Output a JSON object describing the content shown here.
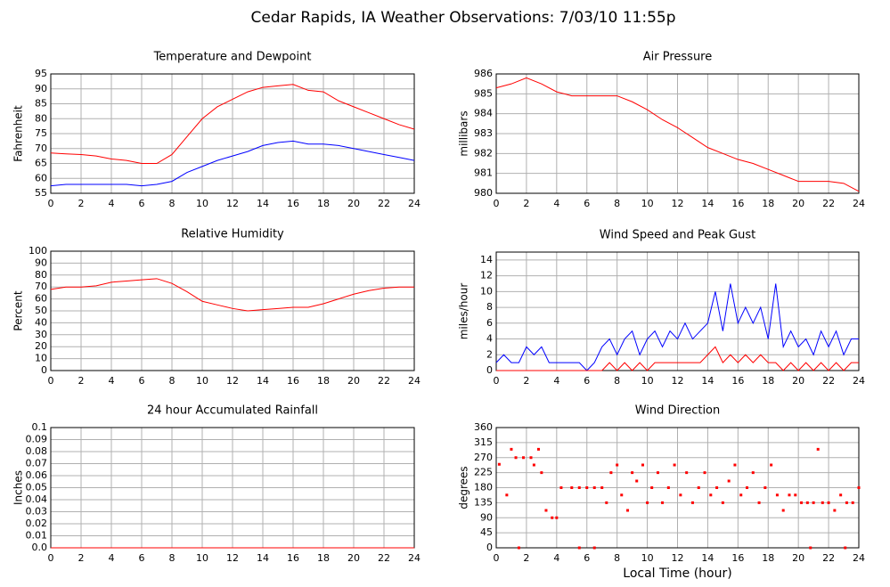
{
  "title": "Cedar Rapids, IA Weather Observations: 7/03/10 11:55p",
  "chart_data": [
    {
      "type": "line",
      "title": "Temperature and Dewpoint",
      "ylabel": "Fahrenheit",
      "x": [
        0,
        1,
        2,
        3,
        4,
        5,
        6,
        7,
        8,
        9,
        10,
        11,
        12,
        13,
        14,
        15,
        16,
        17,
        18,
        19,
        20,
        21,
        22,
        23,
        24
      ],
      "series": [
        {
          "color": "#ff0000",
          "values": [
            68.5,
            68.2,
            68,
            67.5,
            66.5,
            66,
            65,
            65,
            68,
            74,
            80,
            84,
            86.5,
            89,
            90.5,
            91,
            91.5,
            89.5,
            89,
            86,
            84,
            82,
            80,
            78,
            76.5
          ]
        },
        {
          "color": "#0000ff",
          "values": [
            57.5,
            58,
            58,
            58,
            58,
            58,
            57.5,
            58,
            59,
            62,
            64,
            66,
            67.5,
            69,
            71,
            72,
            72.5,
            71.5,
            71.5,
            71,
            70,
            69,
            68,
            67,
            66
          ]
        }
      ],
      "xlim": [
        0,
        24
      ],
      "xticks": [
        0,
        2,
        4,
        6,
        8,
        10,
        12,
        14,
        16,
        18,
        20,
        22,
        24
      ],
      "ylim": [
        55,
        95
      ],
      "yticks": [
        55,
        60,
        65,
        70,
        75,
        80,
        85,
        90,
        95
      ],
      "grid": true
    },
    {
      "type": "line",
      "title": "Air Pressure",
      "ylabel": "millibars",
      "x": [
        0,
        1,
        2,
        3,
        4,
        5,
        6,
        7,
        8,
        9,
        10,
        11,
        12,
        13,
        14,
        15,
        16,
        17,
        18,
        19,
        20,
        21,
        22,
        23,
        24
      ],
      "series": [
        {
          "color": "#ff0000",
          "values": [
            985.3,
            985.5,
            985.8,
            985.5,
            985.1,
            984.9,
            984.9,
            984.9,
            984.9,
            984.6,
            984.2,
            983.7,
            983.3,
            982.8,
            982.3,
            982,
            981.7,
            981.5,
            981.2,
            980.9,
            980.6,
            980.6,
            980.6,
            980.5,
            980.1
          ]
        }
      ],
      "xlim": [
        0,
        24
      ],
      "xticks": [
        0,
        2,
        4,
        6,
        8,
        10,
        12,
        14,
        16,
        18,
        20,
        22,
        24
      ],
      "ylim": [
        980,
        986
      ],
      "yticks": [
        980,
        981,
        982,
        983,
        984,
        985,
        986
      ],
      "grid": true
    },
    {
      "type": "line",
      "title": "Relative Humidity",
      "ylabel": "Percent",
      "x": [
        0,
        1,
        2,
        3,
        4,
        5,
        6,
        7,
        8,
        9,
        10,
        11,
        12,
        13,
        14,
        15,
        16,
        17,
        18,
        19,
        20,
        21,
        22,
        23,
        24
      ],
      "series": [
        {
          "color": "#ff0000",
          "values": [
            68,
            70,
            70,
            71,
            74,
            75,
            76,
            77,
            73,
            66,
            58,
            55,
            52,
            50,
            51,
            52,
            53,
            53,
            56,
            60,
            64,
            67,
            69,
            70,
            70
          ]
        }
      ],
      "xlim": [
        0,
        24
      ],
      "xticks": [
        0,
        2,
        4,
        6,
        8,
        10,
        12,
        14,
        16,
        18,
        20,
        22,
        24
      ],
      "ylim": [
        0,
        100
      ],
      "yticks": [
        0,
        10,
        20,
        30,
        40,
        50,
        60,
        70,
        80,
        90,
        100
      ],
      "grid": true
    },
    {
      "type": "line",
      "title": "Wind Speed and Peak Gust",
      "ylabel": "miles/hour",
      "x": [
        0,
        0.5,
        1,
        1.5,
        2,
        2.5,
        3,
        3.5,
        4,
        4.5,
        5,
        5.5,
        6,
        6.5,
        7,
        7.5,
        8,
        8.5,
        9,
        9.5,
        10,
        10.5,
        11,
        11.5,
        12,
        12.5,
        13,
        13.5,
        14,
        14.5,
        15,
        15.5,
        16,
        16.5,
        17,
        17.5,
        18,
        18.5,
        19,
        19.5,
        20,
        20.5,
        21,
        21.5,
        22,
        22.5,
        23,
        23.5,
        24
      ],
      "series": [
        {
          "color": "#0000ff",
          "values": [
            1,
            2,
            1,
            1,
            3,
            2,
            3,
            1,
            1,
            1,
            1,
            1,
            0,
            1,
            3,
            4,
            2,
            4,
            5,
            2,
            4,
            5,
            3,
            5,
            4,
            6,
            4,
            5,
            6,
            10,
            5,
            11,
            6,
            8,
            6,
            8,
            4,
            11,
            3,
            5,
            3,
            4,
            2,
            5,
            3,
            5,
            2,
            4,
            4
          ]
        },
        {
          "color": "#ff0000",
          "values": [
            0,
            0,
            0,
            0,
            0,
            0,
            0,
            0,
            0,
            0,
            0,
            0,
            0,
            0,
            0,
            1,
            0,
            1,
            0,
            1,
            0,
            1,
            1,
            1,
            1,
            1,
            1,
            1,
            2,
            3,
            1,
            2,
            1,
            2,
            1,
            2,
            1,
            1,
            0,
            1,
            0,
            1,
            0,
            1,
            0,
            1,
            0,
            1,
            1
          ]
        }
      ],
      "xlim": [
        0,
        24
      ],
      "xticks": [
        0,
        2,
        4,
        6,
        8,
        10,
        12,
        14,
        16,
        18,
        20,
        22,
        24
      ],
      "ylim": [
        0,
        15
      ],
      "yticks": [
        0,
        2,
        4,
        6,
        8,
        10,
        12,
        14
      ],
      "grid": true
    },
    {
      "type": "line",
      "title": "24 hour Accumulated Rainfall",
      "ylabel": "Inches",
      "x": [
        0,
        24
      ],
      "series": [
        {
          "color": "#ff0000",
          "values": [
            0,
            0
          ]
        }
      ],
      "xlim": [
        0,
        24
      ],
      "xticks": [
        0,
        2,
        4,
        6,
        8,
        10,
        12,
        14,
        16,
        18,
        20,
        22,
        24
      ],
      "ylim": [
        0,
        0.1
      ],
      "yticks": [
        {
          "value": 0,
          "label": "0.0"
        },
        0.01,
        0.02,
        0.03,
        0.04,
        0.05,
        0.06,
        0.07,
        0.08,
        0.09,
        0.1
      ],
      "grid": true
    },
    {
      "type": "scatter",
      "title": "Wind Direction",
      "ylabel": "degrees",
      "xlabel": "Local Time (hour)",
      "x": [
        0.2,
        0.7,
        1,
        1.3,
        1.8,
        2.3,
        2.5,
        2.8,
        3,
        3.3,
        3.7,
        4,
        4.3,
        5,
        5.5,
        6,
        6.5,
        7,
        7.3,
        7.6,
        8,
        8.3,
        8.7,
        9,
        9.3,
        9.7,
        10,
        10.3,
        10.7,
        11,
        11.4,
        11.8,
        12.2,
        12.6,
        13,
        13.4,
        13.8,
        14.2,
        14.6,
        15,
        15.4,
        15.8,
        16.2,
        16.6,
        17,
        17.4,
        17.8,
        18.2,
        18.6,
        19,
        19.4,
        19.8,
        20.2,
        20.6,
        21,
        21.3,
        21.6,
        22,
        22.4,
        22.8,
        23.2,
        23.6,
        24,
        1.5,
        5.5,
        6.5,
        20.8,
        23.1
      ],
      "series": [
        {
          "color": "#ff0000",
          "values": [
            250,
            158,
            295,
            270,
            270,
            270,
            248,
            295,
            225,
            112,
            90,
            90,
            180,
            180,
            180,
            180,
            180,
            180,
            135,
            225,
            248,
            158,
            112,
            225,
            200,
            248,
            135,
            180,
            225,
            135,
            180,
            248,
            158,
            225,
            135,
            180,
            225,
            158,
            180,
            135,
            200,
            248,
            158,
            180,
            225,
            135,
            180,
            248,
            158,
            112,
            158,
            158,
            135,
            135,
            135,
            295,
            135,
            135,
            112,
            158,
            135,
            135,
            180,
            0,
            0,
            0,
            0,
            0
          ]
        }
      ],
      "xlim": [
        0,
        24
      ],
      "xticks": [
        0,
        2,
        4,
        6,
        8,
        10,
        12,
        14,
        16,
        18,
        20,
        22,
        24
      ],
      "ylim": [
        0,
        360
      ],
      "yticks": [
        0,
        45,
        90,
        135,
        180,
        225,
        270,
        315,
        360
      ],
      "grid": true
    }
  ]
}
